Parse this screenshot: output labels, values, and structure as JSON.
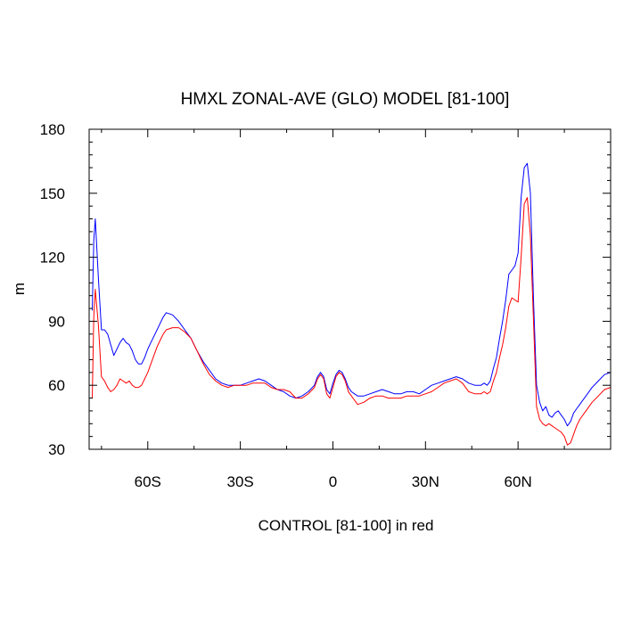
{
  "chart_data": {
    "type": "line",
    "title": "HMXL ZONAL-AVE (GLO) MODEL [81-100]",
    "xlabel": "CONTROL [81-100] in red",
    "ylabel": "m",
    "xlim": [
      -79,
      90
    ],
    "ylim": [
      30,
      180
    ],
    "x_ticks": [
      {
        "value": -60,
        "label": "60S"
      },
      {
        "value": -30,
        "label": "30S"
      },
      {
        "value": 0,
        "label": "0"
      },
      {
        "value": 30,
        "label": "30N"
      },
      {
        "value": 60,
        "label": "60N"
      }
    ],
    "y_ticks": [
      30,
      60,
      90,
      120,
      150,
      180
    ],
    "grid": false,
    "series": [
      {
        "color": "#0000ff",
        "x": [
          -78,
          -77.5,
          -77,
          -76,
          -75,
          -74,
          -73,
          -72,
          -71,
          -70,
          -69,
          -68,
          -67,
          -66,
          -65,
          -64,
          -63,
          -62,
          -61,
          -60,
          -59,
          -58,
          -57,
          -56,
          -55,
          -54,
          -52,
          -50,
          -48,
          -46,
          -44,
          -42,
          -40,
          -38,
          -36,
          -34,
          -32,
          -30,
          -28,
          -26,
          -24,
          -22,
          -20,
          -18,
          -16,
          -14,
          -12,
          -10,
          -8,
          -6,
          -5,
          -4,
          -3,
          -2,
          -1,
          0,
          1,
          2,
          3,
          4,
          5,
          6,
          7,
          8,
          10,
          12,
          14,
          16,
          18,
          20,
          22,
          24,
          26,
          28,
          30,
          32,
          34,
          36,
          38,
          40,
          42,
          44,
          46,
          48,
          49,
          50,
          51,
          52,
          53,
          54,
          55,
          56,
          57,
          58,
          59,
          60,
          61,
          62,
          63,
          64,
          65,
          66,
          67,
          68,
          69,
          70,
          71,
          72,
          73,
          74,
          75,
          76,
          77,
          78,
          79,
          80,
          82,
          84,
          86,
          88,
          90
        ],
        "y": [
          95,
          128,
          138,
          110,
          86,
          86,
          84,
          79,
          74,
          77,
          80,
          82,
          80,
          79,
          76,
          72,
          70,
          70,
          73,
          77,
          80,
          83,
          86,
          89,
          92,
          94,
          93,
          90,
          86,
          82,
          76,
          71,
          67,
          63,
          61,
          60,
          60,
          60,
          61,
          62,
          63,
          62,
          60,
          58,
          57,
          55,
          54,
          55,
          57,
          60,
          64,
          66,
          64,
          58,
          56,
          61,
          65,
          67,
          66,
          63,
          59,
          57,
          56,
          55,
          55,
          56,
          57,
          58,
          57,
          56,
          56,
          57,
          57,
          56,
          58,
          60,
          61,
          62,
          63,
          64,
          63,
          61,
          60,
          60,
          61,
          60,
          62,
          68,
          73,
          82,
          90,
          100,
          112,
          114,
          116,
          122,
          148,
          162,
          164,
          150,
          100,
          60,
          52,
          48,
          50,
          46,
          45,
          47,
          48,
          46,
          44,
          41,
          43,
          47,
          49,
          51,
          55,
          59,
          62,
          65,
          66
        ]
      },
      {
        "color": "#ff0000",
        "x": [
          -78,
          -77.5,
          -77,
          -76,
          -75,
          -74,
          -73,
          -72,
          -71,
          -70,
          -69,
          -68,
          -67,
          -66,
          -65,
          -64,
          -63,
          -62,
          -61,
          -60,
          -59,
          -58,
          -57,
          -56,
          -55,
          -54,
          -52,
          -50,
          -48,
          -46,
          -44,
          -42,
          -40,
          -38,
          -36,
          -34,
          -32,
          -30,
          -28,
          -26,
          -24,
          -22,
          -20,
          -18,
          -16,
          -14,
          -12,
          -10,
          -8,
          -6,
          -5,
          -4,
          -3,
          -2,
          -1,
          0,
          1,
          2,
          3,
          4,
          5,
          6,
          7,
          8,
          10,
          12,
          14,
          16,
          18,
          20,
          22,
          24,
          26,
          28,
          30,
          32,
          34,
          36,
          38,
          40,
          42,
          44,
          46,
          48,
          49,
          50,
          51,
          52,
          53,
          54,
          55,
          56,
          57,
          58,
          59,
          60,
          61,
          62,
          63,
          64,
          65,
          66,
          67,
          68,
          69,
          70,
          71,
          72,
          73,
          74,
          75,
          76,
          77,
          78,
          79,
          80,
          82,
          84,
          86,
          88,
          90
        ],
        "y": [
          54,
          92,
          105,
          88,
          64,
          62,
          59,
          57,
          58,
          60,
          63,
          62,
          61,
          62,
          60,
          59,
          59,
          60,
          63,
          66,
          70,
          74,
          78,
          81,
          84,
          86,
          87,
          87,
          85,
          82,
          76,
          70,
          65,
          62,
          60,
          59,
          60,
          60,
          60,
          61,
          61,
          61,
          59,
          58,
          58,
          57,
          54,
          54,
          56,
          59,
          63,
          65,
          63,
          56,
          54,
          59,
          64,
          66,
          65,
          62,
          57,
          55,
          53,
          51,
          52,
          54,
          55,
          55,
          54,
          54,
          54,
          55,
          55,
          55,
          56,
          57,
          59,
          61,
          62,
          63,
          61,
          57,
          56,
          56,
          57,
          56,
          57,
          62,
          66,
          73,
          79,
          87,
          97,
          101,
          100,
          99,
          120,
          145,
          148,
          130,
          90,
          50,
          44,
          42,
          41,
          42,
          41,
          40,
          39,
          38,
          36,
          32,
          33,
          37,
          41,
          44,
          48,
          52,
          55,
          58,
          59
        ]
      }
    ]
  }
}
